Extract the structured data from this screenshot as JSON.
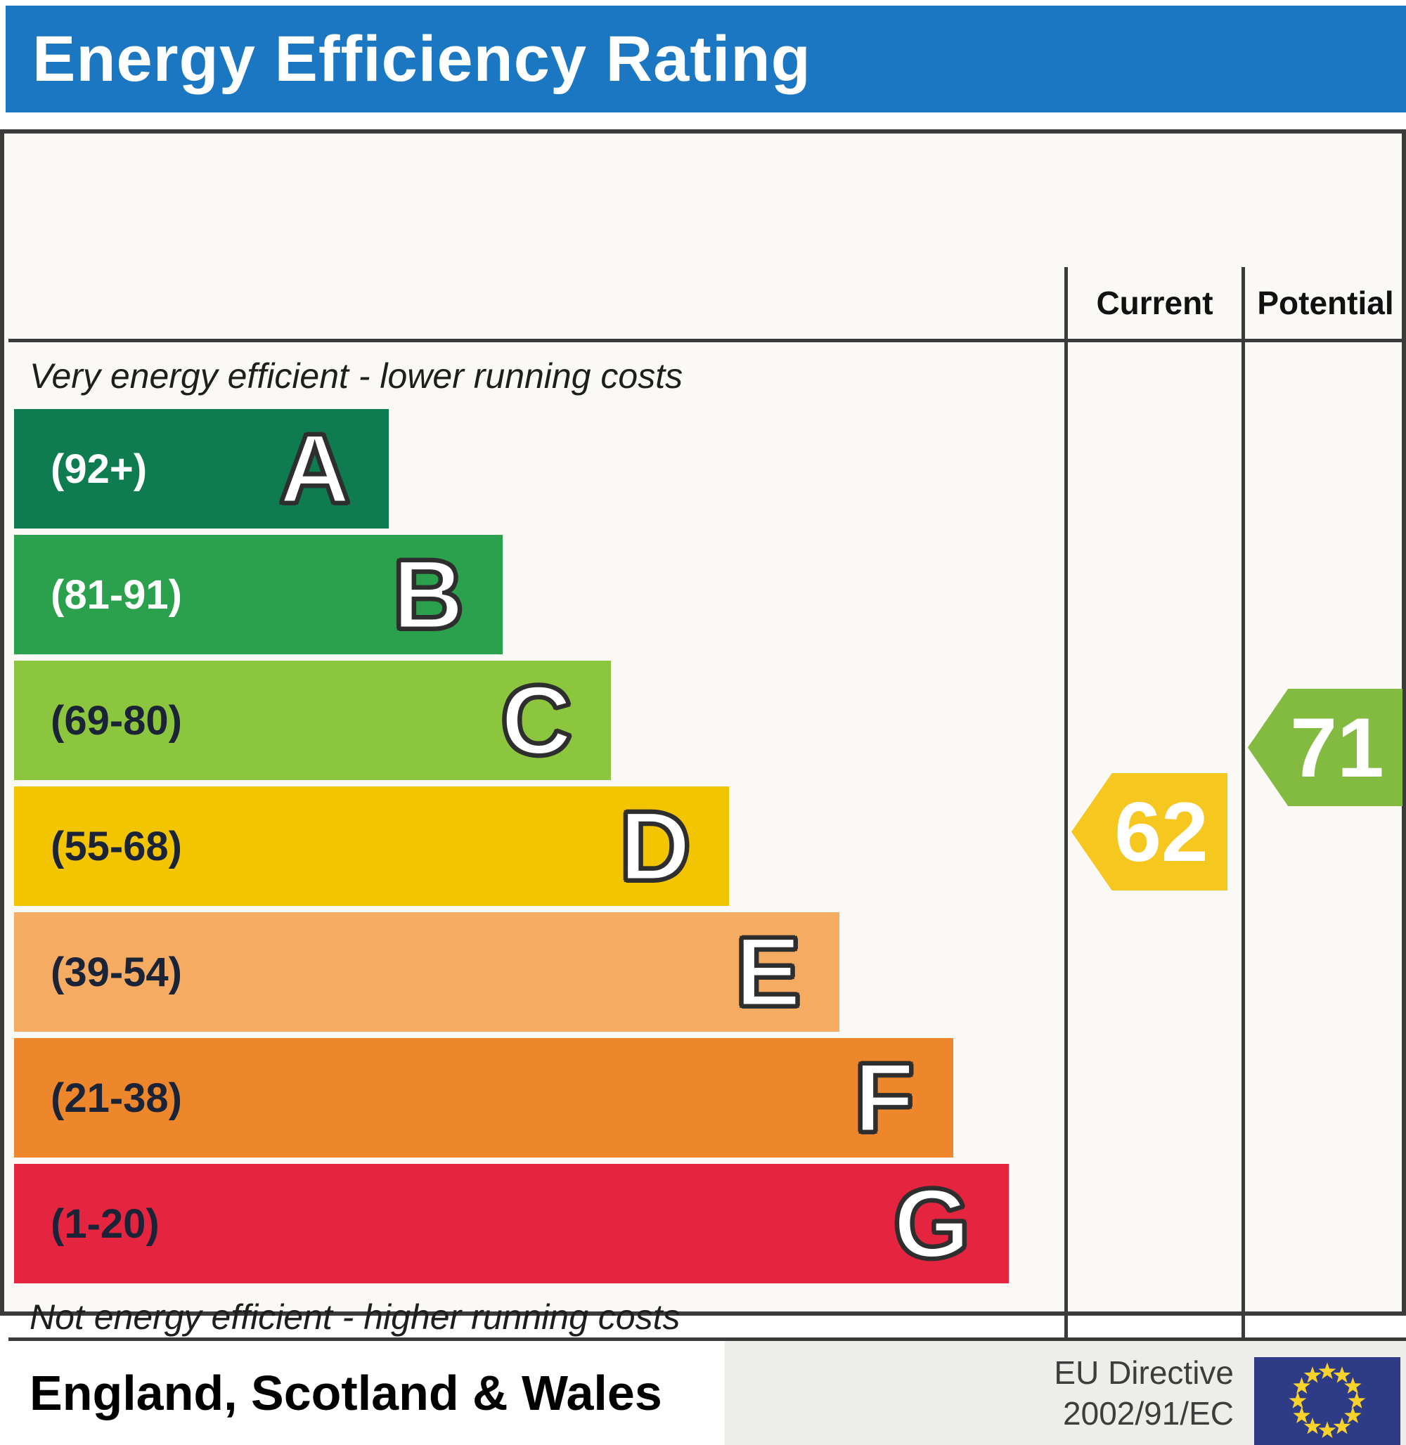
{
  "header": {
    "title": "Energy Efficiency Rating",
    "bg_color": "#1b77c2"
  },
  "columns": {
    "current_label": "Current",
    "potential_label": "Potential"
  },
  "captions": {
    "top": "Very energy efficient - lower running costs",
    "bottom": "Not energy efficient - higher running costs"
  },
  "chart_data": {
    "type": "bar",
    "title": "Energy Efficiency Rating",
    "bands": [
      {
        "letter": "A",
        "range_label": "(92+)",
        "range_min": 92,
        "range_max": 100,
        "color": "#0e7b50",
        "text_color": "#ffffff",
        "width_pct": 35.7
      },
      {
        "letter": "B",
        "range_label": "(81-91)",
        "range_min": 81,
        "range_max": 91,
        "color": "#2ba04d",
        "text_color": "#ffffff",
        "width_pct": 46.5
      },
      {
        "letter": "C",
        "range_label": "(69-80)",
        "range_min": 69,
        "range_max": 80,
        "color": "#8cc63f",
        "text_color": "#1b2436",
        "width_pct": 56.8
      },
      {
        "letter": "D",
        "range_label": "(55-68)",
        "range_min": 55,
        "range_max": 68,
        "color": "#f2c500",
        "text_color": "#1b2436",
        "width_pct": 68.1
      },
      {
        "letter": "E",
        "range_label": "(39-54)",
        "range_min": 39,
        "range_max": 54,
        "color": "#f6ab63",
        "text_color": "#1b2436",
        "width_pct": 78.6
      },
      {
        "letter": "F",
        "range_label": "(21-38)",
        "range_min": 21,
        "range_max": 38,
        "color": "#ee872b",
        "text_color": "#1b2436",
        "width_pct": 89.4
      },
      {
        "letter": "G",
        "range_label": "(1-20)",
        "range_min": 1,
        "range_max": 20,
        "color": "#e52440",
        "text_color": "#1b2436",
        "width_pct": 94.7
      }
    ],
    "current": {
      "value": 62,
      "band": "D",
      "color": "#f6c71f"
    },
    "potential": {
      "value": 71,
      "band": "C",
      "color": "#83bb41"
    }
  },
  "footer": {
    "region_label": "England, Scotland & Wales",
    "directive_line1": "EU Directive",
    "directive_line2": "2002/91/EC",
    "eu_flag": {
      "bg_color": "#2e3c87",
      "star_color": "#f8d12a",
      "star_count": 12
    }
  }
}
